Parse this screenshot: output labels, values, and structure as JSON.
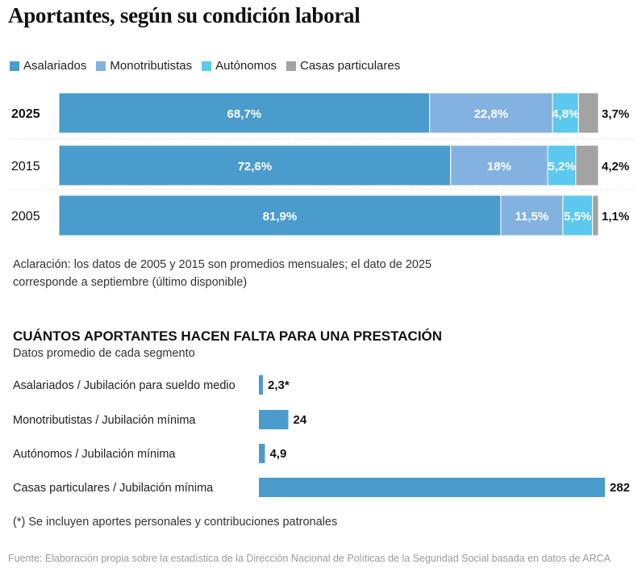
{
  "chart_data": [
    {
      "type": "bar",
      "orientation": "horizontal",
      "stacked": true,
      "title": "Aportantes, según su condición laboral",
      "categories": [
        "2025",
        "2015",
        "2005"
      ],
      "series": [
        {
          "name": "Asalariados",
          "color": "#4a9ccc",
          "values": [
            68.7,
            72.6,
            81.9
          ],
          "labels": [
            "68,7%",
            "72,6%",
            "81,9%"
          ]
        },
        {
          "name": "Monotributistas",
          "color": "#84b2e0",
          "values": [
            22.8,
            18,
            11.5
          ],
          "labels": [
            "22,8%",
            "18%",
            "11,5%"
          ]
        },
        {
          "name": "Autónomos",
          "color": "#5bc8ef",
          "values": [
            4.8,
            5.2,
            5.5
          ],
          "labels": [
            "4,8%",
            "5,2%",
            "5,5%"
          ]
        },
        {
          "name": "Casas particulares",
          "color": "#a3a3a3",
          "values": [
            3.7,
            4.2,
            1.1
          ],
          "labels": [
            "3,7%",
            "4,2%",
            "1,1%"
          ]
        }
      ],
      "xlim": [
        0,
        100
      ],
      "note": "Aclaración: los datos de 2005 y 2015 son promedios mensuales; el dato de 2025 corresponde a septiembre (último disponible)"
    },
    {
      "type": "bar",
      "orientation": "horizontal",
      "title": "CUÁNTOS APORTANTES HACEN FALTA PARA UNA PRESTACIÓN",
      "subtitle": "Datos promedio de cada segmento",
      "color": "#4a9ccc",
      "categories": [
        "Asalariados / Jubilación para sueldo medio",
        "Monotributistas / Jubilación mínima",
        "Autónomos / Jubilación mínima",
        "Casas particulares / Jubilación mínima"
      ],
      "values": [
        2.3,
        24,
        4.9,
        282
      ],
      "labels": [
        "2,3*",
        "24",
        "4,9",
        "282"
      ],
      "xlim": [
        0,
        282
      ]
    }
  ],
  "footnote": "(*) Se incluyen aportes personales y contribuciones patronales",
  "source": "Fuente: Elaboración propia sobre la estadística de la Dirección Nacional de Políticas de la Seguridad Social basada en datos de ARCA"
}
